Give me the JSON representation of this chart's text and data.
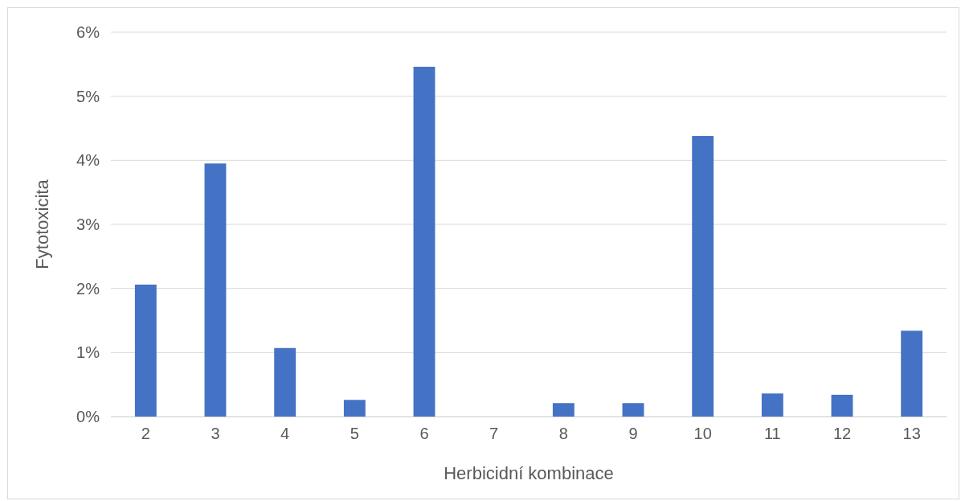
{
  "chart_data": {
    "type": "bar",
    "xlabel": "Herbicidní kombinace",
    "ylabel": "Fytotoxicita",
    "categories": [
      "2",
      "3",
      "4",
      "5",
      "6",
      "7",
      "8",
      "9",
      "10",
      "11",
      "12",
      "13"
    ],
    "values": [
      2.06,
      3.95,
      1.07,
      0.26,
      5.46,
      0,
      0.21,
      0.21,
      4.38,
      0.36,
      0.34,
      1.34
    ],
    "color": "#4472c4",
    "ylim": [
      0,
      6
    ],
    "yticks": [
      {
        "value": 0,
        "label": "0%"
      },
      {
        "value": 1,
        "label": "1%"
      },
      {
        "value": 2,
        "label": "2%"
      },
      {
        "value": 3,
        "label": "3%"
      },
      {
        "value": 4,
        "label": "4%"
      },
      {
        "value": 5,
        "label": "5%"
      },
      {
        "value": 6,
        "label": "6%"
      }
    ],
    "grid": "y"
  }
}
